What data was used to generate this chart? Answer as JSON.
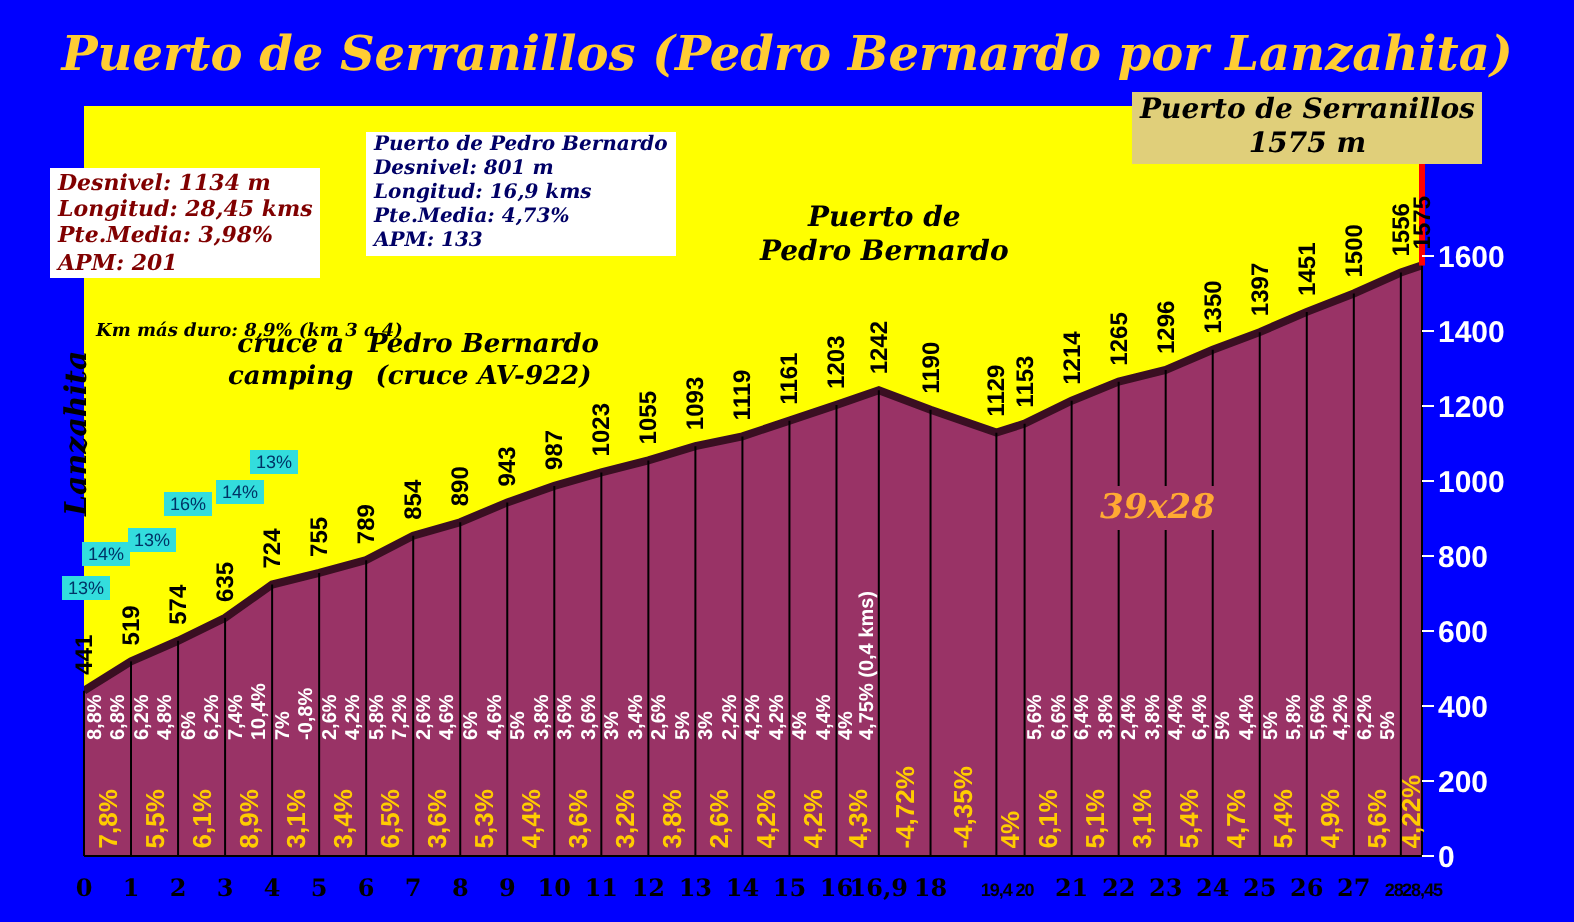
{
  "chart_data": {
    "type": "area",
    "title": "Puerto de Serranillos (Pedro Bernardo por Lanzahita)",
    "x": [
      0,
      1,
      2,
      3,
      4,
      5,
      6,
      7,
      8,
      9,
      10,
      11,
      12,
      13,
      14,
      15,
      16,
      16.9,
      18,
      19.4,
      20,
      21,
      22,
      23,
      24,
      25,
      26,
      27,
      28,
      28.45
    ],
    "series": [
      {
        "color": "#993366",
        "values": [
          441,
          519,
          574,
          635,
          724,
          755,
          789,
          854,
          890,
          943,
          987,
          1023,
          1055,
          1093,
          1119,
          1161,
          1203,
          1242,
          1190,
          1129,
          1153,
          1214,
          1265,
          1296,
          1350,
          1397,
          1451,
          1500,
          1556,
          1575
        ]
      }
    ],
    "data_labels": true,
    "xlim": [
      0,
      28.45
    ],
    "xticks": [
      0,
      1,
      2,
      3,
      4,
      5,
      6,
      7,
      8,
      9,
      10,
      11,
      12,
      13,
      14,
      15,
      16,
      {
        "value": 16.9,
        "label": "16,9"
      },
      18,
      {
        "value": 19.4,
        "label": "19,4"
      },
      20,
      21,
      22,
      23,
      24,
      25,
      26,
      27,
      28,
      {
        "value": 28.45,
        "label": "28,45"
      }
    ],
    "ylim": [
      0,
      2000
    ],
    "yticks": [
      0,
      200,
      400,
      600,
      800,
      1000,
      1200,
      1400,
      1600
    ],
    "grid": "x",
    "ref_lines": [
      {
        "axis": "x",
        "value": 28.45,
        "color": "#ff0000"
      }
    ],
    "annotations": [
      "Desnivel: 1134 m\nLongitud: 28,45 kms\nPte.Media: 3,98%\nAPM: 201",
      "Puerto de Pedro Bernardo\nDesnivel: 801 m\nLongitud: 16,9 kms\nPte.Media: 4,73%\nAPM: 133",
      "Km más duro: 8,9% (km 3 a 4)",
      "39x28",
      "Lanzahita",
      "cruce a\ncamping",
      "Pedro Bernardo\n(cruce AV-922)",
      "Puerto de\nPedro Bernardo",
      "Puerto de Serranillos\n1575 m",
      "13%",
      "14%",
      "13%",
      "16%",
      "14%",
      "13%",
      {
        "text": "7,8%",
        "x": 0.5,
        "y": 20
      },
      {
        "text": "5,5%",
        "x": 1.5,
        "y": 20
      },
      {
        "text": "6,1%",
        "x": 2.5,
        "y": 20
      },
      {
        "text": "8,9%",
        "x": 3.5,
        "y": 20
      },
      {
        "text": "3,1%",
        "x": 4.5,
        "y": 20
      },
      {
        "text": "3,4%",
        "x": 5.5,
        "y": 20
      },
      {
        "text": "6,5%",
        "x": 6.5,
        "y": 20
      },
      {
        "text": "3,6%",
        "x": 7.5,
        "y": 20
      },
      {
        "text": "5,3%",
        "x": 8.5,
        "y": 20
      },
      {
        "text": "4,4%",
        "x": 9.5,
        "y": 20
      },
      {
        "text": "3,6%",
        "x": 10.5,
        "y": 20
      },
      {
        "text": "3,2%",
        "x": 11.5,
        "y": 20
      },
      {
        "text": "3,8%",
        "x": 12.5,
        "y": 20
      },
      {
        "text": "2,6%",
        "x": 13.5,
        "y": 20
      },
      {
        "text": "4,2%",
        "x": 14.5,
        "y": 20
      },
      {
        "text": "4,2%",
        "x": 15.5,
        "y": 20
      },
      {
        "text": "4,3%",
        "x": 16.45,
        "y": 20
      },
      {
        "text": "-4,72%",
        "x": 17.45,
        "y": 20
      },
      {
        "text": "-4,35%",
        "x": 18.7,
        "y": 20
      },
      {
        "text": "4%",
        "x": 19.7,
        "y": 20
      },
      {
        "text": "6,1%",
        "x": 20.5,
        "y": 20
      },
      {
        "text": "5,1%",
        "x": 21.5,
        "y": 20
      },
      {
        "text": "3,1%",
        "x": 22.5,
        "y": 20
      },
      {
        "text": "5,4%",
        "x": 23.5,
        "y": 20
      },
      {
        "text": "4,7%",
        "x": 24.5,
        "y": 20
      },
      {
        "text": "5,4%",
        "x": 25.5,
        "y": 20
      },
      {
        "text": "4,9%",
        "x": 26.5,
        "y": 20
      },
      {
        "text": "5,6%",
        "x": 27.5,
        "y": 20
      },
      {
        "text": "4,22%",
        "x": 28.225,
        "y": 20
      },
      "8,8%",
      "6,8%",
      "6,2%",
      "4,8%",
      "6%",
      "6,2%",
      "7,4%",
      "10,4%",
      "7%",
      "-0,8%",
      "2,6%",
      "4,2%",
      "5,8%",
      "7,2%",
      "2,6%",
      "4,6%",
      "6%",
      "4,6%",
      "5%",
      "3,8%",
      "3,6%",
      "3,6%",
      "3%",
      "3,4%",
      "2,6%",
      "5%",
      "3%",
      "2,2%",
      "4,2%",
      "4,2%",
      "4%",
      "4,4%",
      "4%",
      "4,75% (0,4 kms)",
      "5,6%",
      "6,6%",
      "6,4%",
      "3,8%",
      "2,4%",
      "3,8%",
      "4,4%",
      "6,4%",
      "5%",
      "4,4%",
      "5%",
      "5,8%",
      "5,6%",
      "4,2%",
      "6,2%",
      "5%"
    ]
  }
}
